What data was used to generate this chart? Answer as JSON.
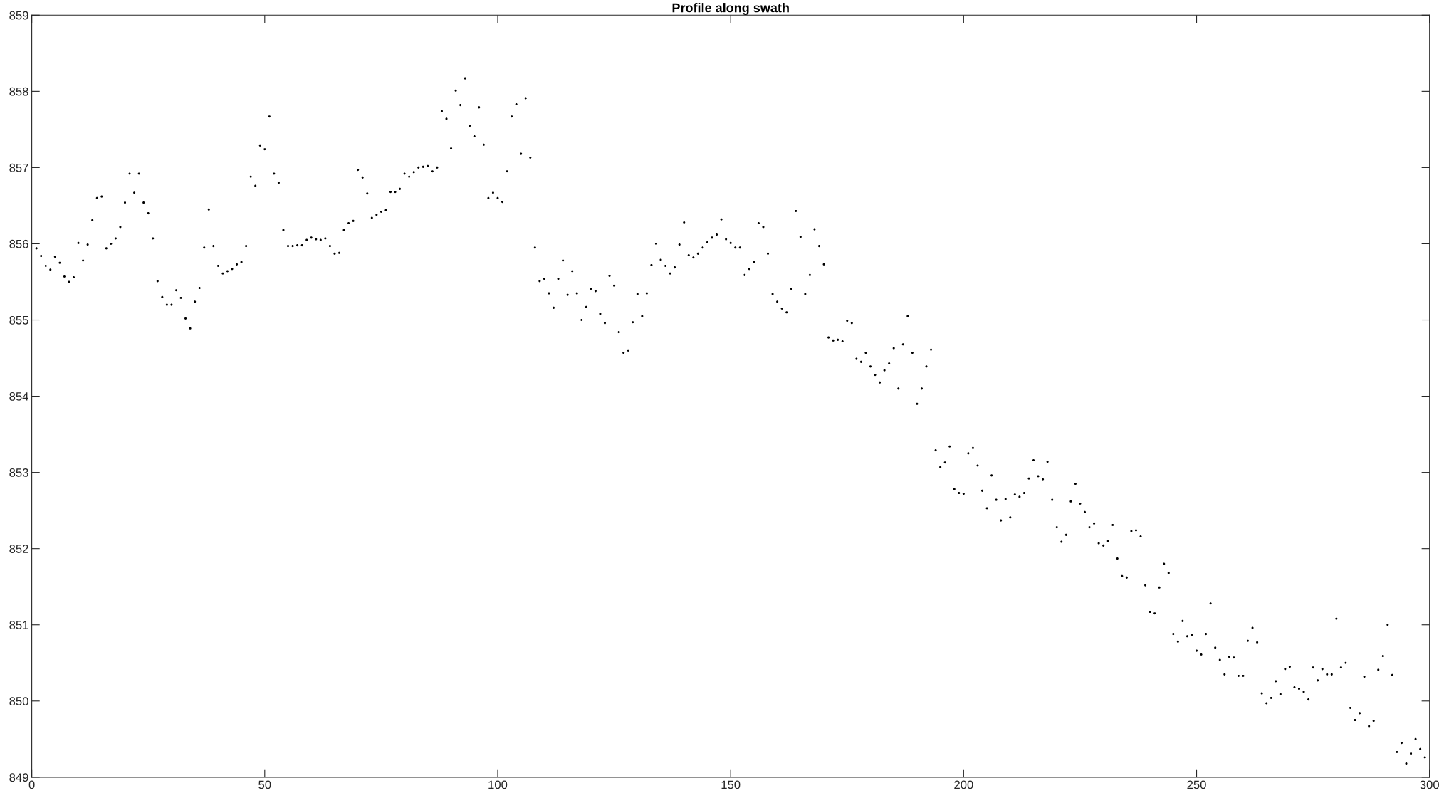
{
  "chart_data": {
    "type": "scatter",
    "title": "Profile along swath",
    "x": [
      1,
      2,
      3,
      4,
      5,
      6,
      7,
      8,
      9,
      10,
      11,
      12,
      13,
      14,
      15,
      16,
      17,
      18,
      19,
      20,
      21,
      22,
      23,
      24,
      25,
      26,
      27,
      28,
      29,
      30,
      31,
      32,
      33,
      34,
      35,
      36,
      37,
      38,
      39,
      40,
      41,
      42,
      43,
      44,
      45,
      46,
      47,
      48,
      49,
      50,
      51,
      52,
      53,
      54,
      55,
      56,
      57,
      58,
      59,
      60,
      61,
      62,
      63,
      64,
      65,
      66,
      67,
      68,
      69,
      70,
      71,
      72,
      73,
      74,
      75,
      76,
      77,
      78,
      79,
      80,
      81,
      82,
      83,
      84,
      85,
      86,
      87,
      88,
      89,
      90,
      91,
      92,
      93,
      94,
      95,
      96,
      97,
      98,
      99,
      100,
      101,
      102,
      103,
      104,
      105,
      106,
      107,
      108,
      109,
      110,
      111,
      112,
      113,
      114,
      115,
      116,
      117,
      118,
      119,
      120,
      121,
      122,
      123,
      124,
      125,
      126,
      127,
      128,
      129,
      130,
      131,
      132,
      133,
      134,
      135,
      136,
      137,
      138,
      139,
      140,
      141,
      142,
      143,
      144,
      145,
      146,
      147,
      148,
      149,
      150,
      151,
      152,
      153,
      154,
      155,
      156,
      157,
      158,
      159,
      160,
      161,
      162,
      163,
      164,
      165,
      166,
      167,
      168,
      169,
      170,
      171,
      172,
      173,
      174,
      175,
      176,
      177,
      178,
      179,
      180,
      181,
      182,
      183,
      184,
      185,
      186,
      187,
      188,
      189,
      190,
      191,
      192,
      193,
      194,
      195,
      196,
      197,
      198,
      199,
      200,
      201,
      202,
      203,
      204,
      205,
      206,
      207,
      208,
      209,
      210,
      211,
      212,
      213,
      214,
      215,
      216,
      217,
      218,
      219,
      220,
      221,
      222,
      223,
      224,
      225,
      226,
      227,
      228,
      229,
      230,
      231,
      232,
      233,
      234,
      235,
      236,
      237,
      238,
      239,
      240,
      241,
      242,
      243,
      244,
      245,
      246,
      247,
      248,
      249,
      250,
      251,
      252,
      253,
      254,
      255,
      256,
      257,
      258,
      259,
      260,
      261,
      262,
      263,
      264,
      265,
      266,
      267,
      268,
      269,
      270,
      271,
      272,
      273,
      274,
      275,
      276,
      277,
      278,
      279,
      280,
      281,
      282,
      283,
      284,
      285,
      286,
      287,
      288,
      289,
      290,
      291,
      292,
      293,
      294,
      295,
      296,
      297,
      298,
      299
    ],
    "values": [
      855.94,
      855.84,
      855.71,
      855.66,
      855.83,
      855.75,
      855.57,
      855.5,
      855.56,
      856.01,
      855.78,
      855.99,
      856.31,
      856.6,
      856.62,
      855.94,
      856.0,
      856.07,
      856.22,
      856.54,
      856.92,
      856.67,
      856.92,
      856.54,
      856.4,
      856.07,
      855.51,
      855.3,
      855.2,
      855.2,
      855.39,
      855.29,
      855.02,
      854.89,
      855.24,
      855.42,
      855.95,
      856.45,
      855.97,
      855.71,
      855.61,
      855.64,
      855.67,
      855.73,
      855.76,
      855.97,
      856.88,
      856.76,
      857.29,
      857.24,
      857.67,
      856.92,
      856.8,
      856.18,
      855.97,
      855.97,
      855.98,
      855.98,
      856.05,
      856.08,
      856.06,
      856.05,
      856.07,
      855.97,
      855.87,
      855.88,
      856.18,
      856.27,
      856.3,
      856.97,
      856.87,
      856.66,
      856.34,
      856.38,
      856.42,
      856.44,
      856.68,
      856.68,
      856.72,
      856.92,
      856.88,
      856.94,
      857.0,
      857.01,
      857.02,
      856.95,
      857.0,
      857.74,
      857.64,
      857.25,
      858.01,
      857.82,
      858.17,
      857.55,
      857.41,
      857.79,
      857.3,
      856.6,
      856.67,
      856.6,
      856.55,
      856.95,
      857.67,
      857.83,
      857.18,
      857.91,
      857.13,
      855.95,
      855.51,
      855.54,
      855.35,
      855.16,
      855.54,
      855.78,
      855.33,
      855.64,
      855.35,
      855.0,
      855.17,
      855.41,
      855.38,
      855.08,
      854.96,
      855.58,
      855.45,
      854.84,
      854.57,
      854.6,
      854.97,
      855.34,
      855.05,
      855.35,
      855.72,
      856.0,
      855.79,
      855.71,
      855.61,
      855.69,
      855.99,
      856.28,
      855.85,
      855.82,
      855.87,
      855.95,
      856.02,
      856.08,
      856.12,
      856.32,
      856.06,
      856.01,
      855.95,
      855.95,
      855.59,
      855.67,
      855.76,
      856.27,
      856.22,
      855.87,
      855.34,
      855.24,
      855.15,
      855.1,
      855.41,
      856.43,
      856.09,
      855.34,
      855.59,
      856.19,
      855.97,
      855.73,
      854.77,
      854.73,
      854.74,
      854.72,
      854.99,
      854.96,
      854.49,
      854.45,
      854.57,
      854.39,
      854.28,
      854.18,
      854.34,
      854.43,
      854.63,
      854.1,
      854.68,
      855.05,
      854.57,
      853.9,
      854.1,
      854.39,
      854.61,
      853.29,
      853.07,
      853.13,
      853.34,
      852.78,
      852.73,
      852.72,
      853.25,
      853.32,
      853.09,
      852.76,
      852.53,
      852.96,
      852.64,
      852.37,
      852.65,
      852.41,
      852.71,
      852.68,
      852.73,
      852.92,
      853.16,
      852.95,
      852.91,
      853.14,
      852.64,
      852.28,
      852.09,
      852.18,
      852.62,
      852.85,
      852.59,
      852.48,
      852.28,
      852.33,
      852.07,
      852.04,
      852.1,
      852.31,
      851.87,
      851.64,
      851.62,
      852.23,
      852.24,
      852.16,
      851.52,
      851.17,
      851.15,
      851.49,
      851.8,
      851.68,
      850.88,
      850.78,
      851.05,
      850.85,
      850.87,
      850.66,
      850.61,
      850.88,
      851.28,
      850.7,
      850.54,
      850.35,
      850.58,
      850.57,
      850.33,
      850.33,
      850.79,
      850.96,
      850.77,
      850.1,
      849.97,
      850.04,
      850.26,
      850.09,
      850.42,
      850.45,
      850.18,
      850.16,
      850.12,
      850.02,
      850.44,
      850.27,
      850.42,
      850.35,
      850.35,
      851.08,
      850.44,
      850.5,
      849.91,
      849.75,
      849.84,
      850.32,
      849.67,
      849.74,
      850.41,
      850.59,
      851.0,
      850.34,
      849.33,
      849.45,
      849.18,
      849.31,
      849.5,
      849.37,
      849.26
    ],
    "color": "#000000",
    "marker": "circle",
    "xlim": [
      0,
      300
    ],
    "xticks": [
      0,
      50,
      100,
      150,
      200,
      250,
      300
    ],
    "ylim": [
      849,
      859
    ],
    "yticks": [
      849,
      850,
      851,
      852,
      853,
      854,
      855,
      856,
      857,
      858,
      859
    ],
    "grid": false,
    "legend": false
  }
}
